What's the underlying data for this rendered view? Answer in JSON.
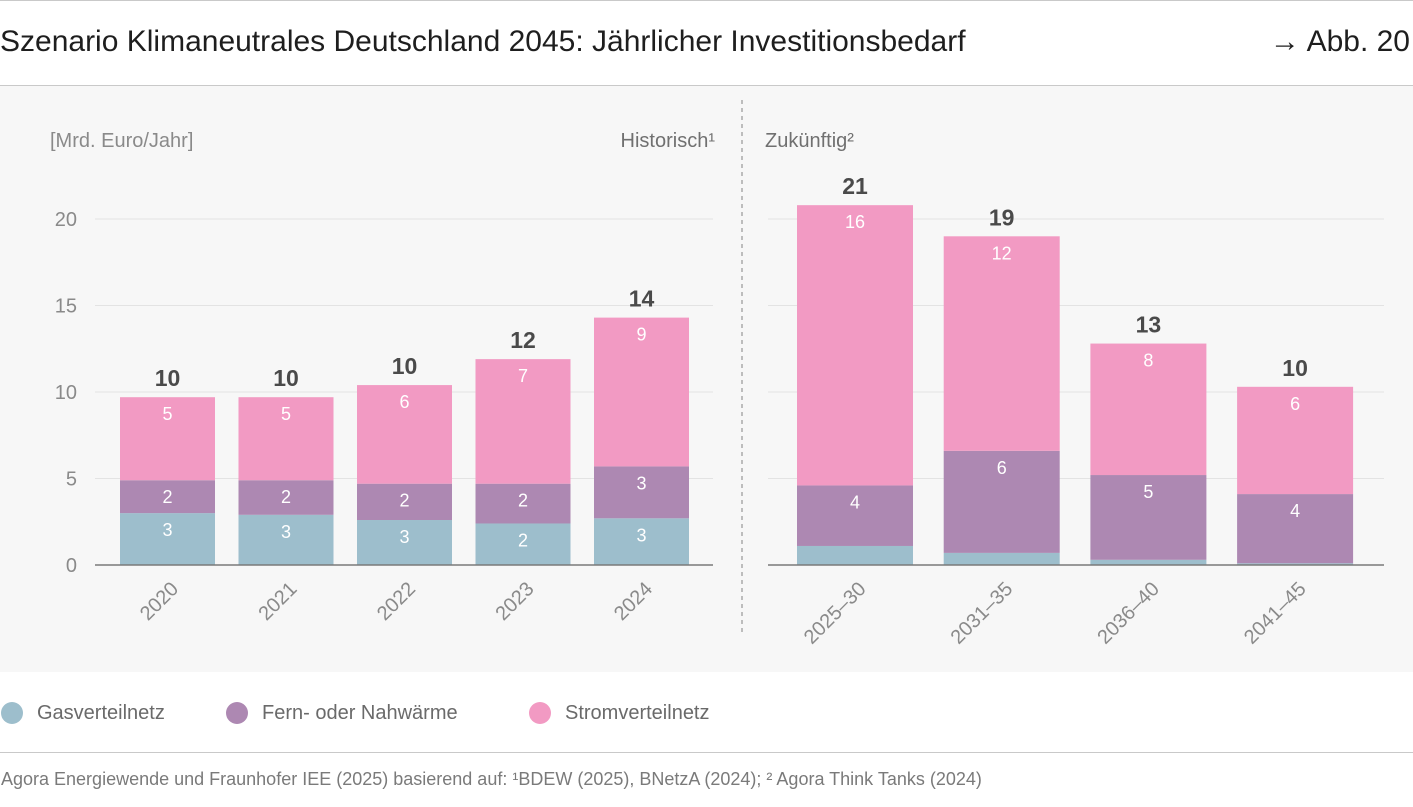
{
  "header": {
    "figure_ref": "→ Abb. 20"
  },
  "chart_data": {
    "type": "bar",
    "stacked": true,
    "title": "Szenario Klimaneutrales Deutschland 2045: Jährlicher Investitionsbedarf",
    "ylabel": "[Mrd. Euro/Jahr]",
    "yticks": [
      0,
      5,
      10,
      15,
      20
    ],
    "grid": true,
    "legend_position": "bottom-left",
    "series": [
      {
        "name": "Gasverteilnetz",
        "color": "#9dbecc"
      },
      {
        "name": "Fern- oder Nahwärme",
        "color": "#ad88b2"
      },
      {
        "name": "Stromverteilnetz",
        "color": "#f29ac3"
      }
    ],
    "panels": [
      {
        "label": "Historisch¹",
        "categories": [
          "2020",
          "2021",
          "2022",
          "2023",
          "2024"
        ],
        "values": [
          [
            3.0,
            2.9,
            2.6,
            2.4,
            2.7
          ],
          [
            1.9,
            2.0,
            2.1,
            2.3,
            3.0
          ],
          [
            4.8,
            4.8,
            5.7,
            7.2,
            8.6
          ]
        ],
        "data_labels": [
          [
            3,
            3,
            3,
            2,
            3
          ],
          [
            2,
            2,
            2,
            2,
            3
          ],
          [
            5,
            5,
            6,
            7,
            9
          ]
        ],
        "totals": [
          10,
          10,
          10,
          12,
          14
        ]
      },
      {
        "label": "Zukünftig²",
        "categories": [
          "2025–30",
          "2031–35",
          "2036–40",
          "2041–45"
        ],
        "values": [
          [
            1.1,
            0.7,
            0.3,
            0.1
          ],
          [
            3.5,
            5.9,
            4.9,
            4.0
          ],
          [
            16.2,
            12.4,
            7.6,
            6.2
          ]
        ],
        "data_labels": [
          [
            null,
            null,
            null,
            null
          ],
          [
            4,
            6,
            5,
            4
          ],
          [
            16,
            12,
            8,
            6
          ]
        ],
        "totals": [
          21,
          19,
          13,
          10
        ]
      }
    ]
  },
  "footer": {
    "source": "Agora Energiewende und Fraunhofer IEE (2025) basierend auf: ¹BDEW (2025), BNetzA (2024); ² Agora Think Tanks (2024)"
  }
}
